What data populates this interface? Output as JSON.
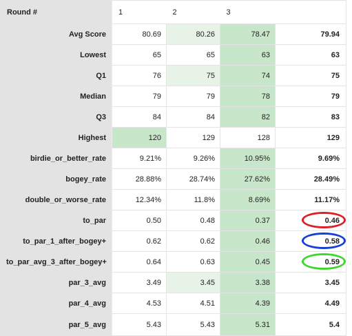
{
  "header": {
    "label": "Round #",
    "rounds": [
      "1",
      "2",
      "3"
    ],
    "summary": ""
  },
  "colors": {
    "label_bg": "#e3e3e3",
    "highlight_strong": "#c8e6c9",
    "highlight_light": "#e6f3e6",
    "ring_red": "#dd1f26",
    "ring_blue": "#1440d8",
    "ring_green": "#3fd62f"
  },
  "rows": [
    {
      "label": "Avg Score",
      "values": [
        "80.69",
        "80.26",
        "78.47"
      ],
      "summary": "79.94",
      "highlight": [
        "none",
        "light",
        "strong"
      ]
    },
    {
      "label": "Lowest",
      "values": [
        "65",
        "65",
        "63"
      ],
      "summary": "63",
      "highlight": [
        "none",
        "none",
        "strong"
      ]
    },
    {
      "label": "Q1",
      "values": [
        "76",
        "75",
        "74"
      ],
      "summary": "75",
      "highlight": [
        "none",
        "light",
        "strong"
      ]
    },
    {
      "label": "Median",
      "values": [
        "79",
        "79",
        "78"
      ],
      "summary": "79",
      "highlight": [
        "none",
        "none",
        "strong"
      ]
    },
    {
      "label": "Q3",
      "values": [
        "84",
        "84",
        "82"
      ],
      "summary": "83",
      "highlight": [
        "none",
        "none",
        "strong"
      ]
    },
    {
      "label": "Highest",
      "values": [
        "120",
        "129",
        "128"
      ],
      "summary": "129",
      "highlight": [
        "strong",
        "none",
        "none"
      ]
    },
    {
      "label": "birdie_or_better_rate",
      "values": [
        "9.21%",
        "9.26%",
        "10.95%"
      ],
      "summary": "9.69%",
      "highlight": [
        "none",
        "none",
        "strong"
      ]
    },
    {
      "label": "bogey_rate",
      "values": [
        "28.88%",
        "28.74%",
        "27.62%"
      ],
      "summary": "28.49%",
      "highlight": [
        "none",
        "none",
        "strong"
      ]
    },
    {
      "label": "double_or_worse_rate",
      "values": [
        "12.34%",
        "11.8%",
        "8.69%"
      ],
      "summary": "11.17%",
      "highlight": [
        "none",
        "none",
        "strong"
      ]
    },
    {
      "label": "to_par",
      "values": [
        "0.50",
        "0.48",
        "0.37"
      ],
      "summary": "0.46",
      "highlight": [
        "none",
        "none",
        "strong"
      ],
      "ring": "red"
    },
    {
      "label": "to_par_1_after_bogey+",
      "values": [
        "0.62",
        "0.62",
        "0.46"
      ],
      "summary": "0.58",
      "highlight": [
        "none",
        "none",
        "strong"
      ],
      "ring": "blue"
    },
    {
      "label": "to_par_avg_3_after_bogey+",
      "values": [
        "0.64",
        "0.63",
        "0.45"
      ],
      "summary": "0.59",
      "highlight": [
        "none",
        "none",
        "strong"
      ],
      "ring": "green"
    },
    {
      "label": "par_3_avg",
      "values": [
        "3.49",
        "3.45",
        "3.38"
      ],
      "summary": "3.45",
      "highlight": [
        "none",
        "light",
        "strong"
      ]
    },
    {
      "label": "par_4_avg",
      "values": [
        "4.53",
        "4.51",
        "4.39"
      ],
      "summary": "4.49",
      "highlight": [
        "none",
        "none",
        "strong"
      ]
    },
    {
      "label": "par_5_avg",
      "values": [
        "5.43",
        "5.43",
        "5.31"
      ],
      "summary": "5.4",
      "highlight": [
        "none",
        "none",
        "strong"
      ]
    }
  ]
}
